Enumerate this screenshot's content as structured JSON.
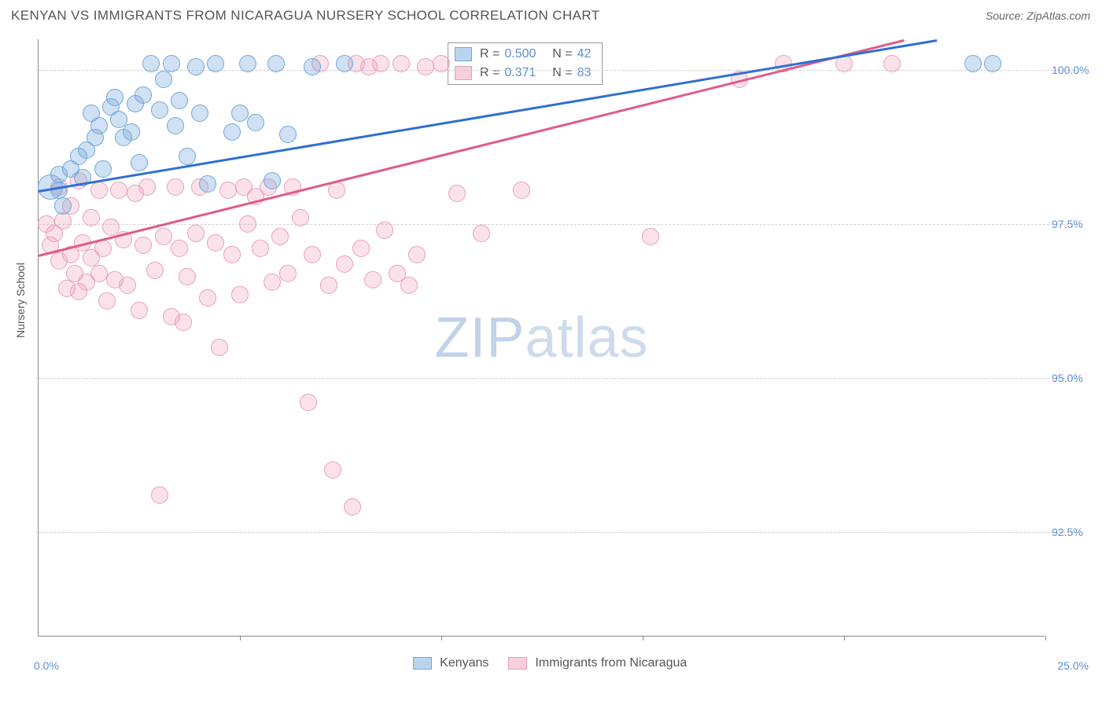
{
  "header": {
    "title": "KENYAN VS IMMIGRANTS FROM NICARAGUA NURSERY SCHOOL CORRELATION CHART",
    "source": "Source: ZipAtlas.com"
  },
  "chart": {
    "type": "scatter",
    "ylabel": "Nursery School",
    "xlim": [
      0.0,
      25.0
    ],
    "ylim": [
      90.8,
      100.5
    ],
    "yticks": [
      92.5,
      95.0,
      97.5,
      100.0
    ],
    "ytick_labels": [
      "92.5%",
      "95.0%",
      "97.5%",
      "100.0%"
    ],
    "xticks": [
      0,
      5,
      10,
      15,
      20,
      25
    ],
    "xaxis_start_label": "0.0%",
    "xaxis_end_label": "25.0%",
    "colors": {
      "blue_fill": "#9cc3e8",
      "blue_stroke": "#6fa8dc",
      "blue_line": "#2f6fd0",
      "pink_fill": "#f5b8ce",
      "pink_stroke": "#e8a0b8",
      "pink_line": "#e05a8a",
      "grid": "#d0d0d0",
      "axis": "#888888",
      "text": "#555555",
      "tick_text": "#5b8fd6",
      "background": "#ffffff"
    },
    "marker_radius": 11,
    "watermark": "ZIPatlas",
    "series_a": {
      "name": "Kenyans",
      "color": "blue",
      "stats": {
        "R_label": "R =",
        "R": "0.500",
        "N_label": "N =",
        "N": "42"
      },
      "trend": {
        "x1": 0.0,
        "y1": 98.05,
        "x2": 22.3,
        "y2": 100.5
      },
      "points": [
        {
          "x": 0.3,
          "y": 98.1,
          "r": 16
        },
        {
          "x": 0.5,
          "y": 98.05
        },
        {
          "x": 0.5,
          "y": 98.3
        },
        {
          "x": 0.6,
          "y": 97.8
        },
        {
          "x": 0.8,
          "y": 98.4
        },
        {
          "x": 1.0,
          "y": 98.6
        },
        {
          "x": 1.1,
          "y": 98.25
        },
        {
          "x": 1.2,
          "y": 98.7
        },
        {
          "x": 1.3,
          "y": 99.3
        },
        {
          "x": 1.4,
          "y": 98.9
        },
        {
          "x": 1.5,
          "y": 99.1
        },
        {
          "x": 1.6,
          "y": 98.4
        },
        {
          "x": 1.8,
          "y": 99.4
        },
        {
          "x": 1.9,
          "y": 99.55
        },
        {
          "x": 2.0,
          "y": 99.2
        },
        {
          "x": 2.1,
          "y": 98.9
        },
        {
          "x": 2.3,
          "y": 99.0
        },
        {
          "x": 2.4,
          "y": 99.45
        },
        {
          "x": 2.5,
          "y": 98.5
        },
        {
          "x": 2.6,
          "y": 99.6
        },
        {
          "x": 2.8,
          "y": 100.1
        },
        {
          "x": 3.0,
          "y": 99.35
        },
        {
          "x": 3.1,
          "y": 99.85
        },
        {
          "x": 3.3,
          "y": 100.1
        },
        {
          "x": 3.4,
          "y": 99.1
        },
        {
          "x": 3.5,
          "y": 99.5
        },
        {
          "x": 3.7,
          "y": 98.6
        },
        {
          "x": 3.9,
          "y": 100.05
        },
        {
          "x": 4.0,
          "y": 99.3
        },
        {
          "x": 4.2,
          "y": 98.15
        },
        {
          "x": 4.4,
          "y": 100.1
        },
        {
          "x": 4.8,
          "y": 99.0
        },
        {
          "x": 5.0,
          "y": 99.3
        },
        {
          "x": 5.2,
          "y": 100.1
        },
        {
          "x": 5.4,
          "y": 99.15
        },
        {
          "x": 5.8,
          "y": 98.2
        },
        {
          "x": 5.9,
          "y": 100.1
        },
        {
          "x": 6.2,
          "y": 98.95
        },
        {
          "x": 6.8,
          "y": 100.05
        },
        {
          "x": 7.6,
          "y": 100.1
        },
        {
          "x": 23.2,
          "y": 100.1
        },
        {
          "x": 23.7,
          "y": 100.1
        }
      ]
    },
    "series_b": {
      "name": "Immigrants from Nicaragua",
      "color": "pink",
      "stats": {
        "R_label": "R =",
        "R": " 0.371",
        "N_label": "N =",
        "N": "83"
      },
      "trend": {
        "x1": 0.0,
        "y1": 97.0,
        "x2": 21.5,
        "y2": 100.5
      },
      "points": [
        {
          "x": 0.2,
          "y": 97.5
        },
        {
          "x": 0.3,
          "y": 97.15
        },
        {
          "x": 0.4,
          "y": 97.35
        },
        {
          "x": 0.5,
          "y": 96.9
        },
        {
          "x": 0.5,
          "y": 98.1
        },
        {
          "x": 0.6,
          "y": 97.55
        },
        {
          "x": 0.7,
          "y": 96.45
        },
        {
          "x": 0.8,
          "y": 97.0
        },
        {
          "x": 0.8,
          "y": 97.8
        },
        {
          "x": 0.9,
          "y": 96.7
        },
        {
          "x": 1.0,
          "y": 96.4
        },
        {
          "x": 1.0,
          "y": 98.2
        },
        {
          "x": 1.1,
          "y": 97.2
        },
        {
          "x": 1.2,
          "y": 96.55
        },
        {
          "x": 1.3,
          "y": 97.6
        },
        {
          "x": 1.3,
          "y": 96.95
        },
        {
          "x": 1.5,
          "y": 96.7
        },
        {
          "x": 1.5,
          "y": 98.05
        },
        {
          "x": 1.6,
          "y": 97.1
        },
        {
          "x": 1.7,
          "y": 96.25
        },
        {
          "x": 1.8,
          "y": 97.45
        },
        {
          "x": 1.9,
          "y": 96.6
        },
        {
          "x": 2.0,
          "y": 98.05
        },
        {
          "x": 2.1,
          "y": 97.25
        },
        {
          "x": 2.2,
          "y": 96.5
        },
        {
          "x": 2.4,
          "y": 98.0
        },
        {
          "x": 2.5,
          "y": 96.1
        },
        {
          "x": 2.6,
          "y": 97.15
        },
        {
          "x": 2.7,
          "y": 98.1
        },
        {
          "x": 2.9,
          "y": 96.75
        },
        {
          "x": 3.0,
          "y": 93.1
        },
        {
          "x": 3.1,
          "y": 97.3
        },
        {
          "x": 3.3,
          "y": 96.0
        },
        {
          "x": 3.4,
          "y": 98.1
        },
        {
          "x": 3.5,
          "y": 97.1
        },
        {
          "x": 3.6,
          "y": 95.9
        },
        {
          "x": 3.7,
          "y": 96.65
        },
        {
          "x": 3.9,
          "y": 97.35
        },
        {
          "x": 4.0,
          "y": 98.1
        },
        {
          "x": 4.2,
          "y": 96.3
        },
        {
          "x": 4.4,
          "y": 97.2
        },
        {
          "x": 4.5,
          "y": 95.5
        },
        {
          "x": 4.7,
          "y": 98.05
        },
        {
          "x": 4.8,
          "y": 97.0
        },
        {
          "x": 5.0,
          "y": 96.35
        },
        {
          "x": 5.1,
          "y": 98.1
        },
        {
          "x": 5.2,
          "y": 97.5
        },
        {
          "x": 5.4,
          "y": 97.95
        },
        {
          "x": 5.5,
          "y": 97.1
        },
        {
          "x": 5.7,
          "y": 98.1
        },
        {
          "x": 5.8,
          "y": 96.55
        },
        {
          "x": 6.0,
          "y": 97.3
        },
        {
          "x": 6.2,
          "y": 96.7
        },
        {
          "x": 6.3,
          "y": 98.1
        },
        {
          "x": 6.5,
          "y": 97.6
        },
        {
          "x": 6.7,
          "y": 94.6
        },
        {
          "x": 6.8,
          "y": 97.0
        },
        {
          "x": 7.0,
          "y": 100.1
        },
        {
          "x": 7.2,
          "y": 96.5
        },
        {
          "x": 7.3,
          "y": 93.5
        },
        {
          "x": 7.4,
          "y": 98.05
        },
        {
          "x": 7.6,
          "y": 96.85
        },
        {
          "x": 7.8,
          "y": 92.9
        },
        {
          "x": 7.9,
          "y": 100.1
        },
        {
          "x": 8.0,
          "y": 97.1
        },
        {
          "x": 8.2,
          "y": 100.05
        },
        {
          "x": 8.3,
          "y": 96.6
        },
        {
          "x": 8.5,
          "y": 100.1
        },
        {
          "x": 8.6,
          "y": 97.4
        },
        {
          "x": 8.9,
          "y": 96.7
        },
        {
          "x": 9.0,
          "y": 100.1
        },
        {
          "x": 9.2,
          "y": 96.5
        },
        {
          "x": 9.4,
          "y": 97.0
        },
        {
          "x": 9.6,
          "y": 100.05
        },
        {
          "x": 10.0,
          "y": 100.1
        },
        {
          "x": 10.4,
          "y": 98.0
        },
        {
          "x": 11.0,
          "y": 97.35
        },
        {
          "x": 12.0,
          "y": 98.05
        },
        {
          "x": 15.2,
          "y": 97.3
        },
        {
          "x": 17.4,
          "y": 99.85
        },
        {
          "x": 18.5,
          "y": 100.1
        },
        {
          "x": 20.0,
          "y": 100.1
        },
        {
          "x": 21.2,
          "y": 100.1
        }
      ]
    },
    "legend": {
      "a": "Kenyans",
      "b": "Immigrants from Nicaragua"
    }
  }
}
